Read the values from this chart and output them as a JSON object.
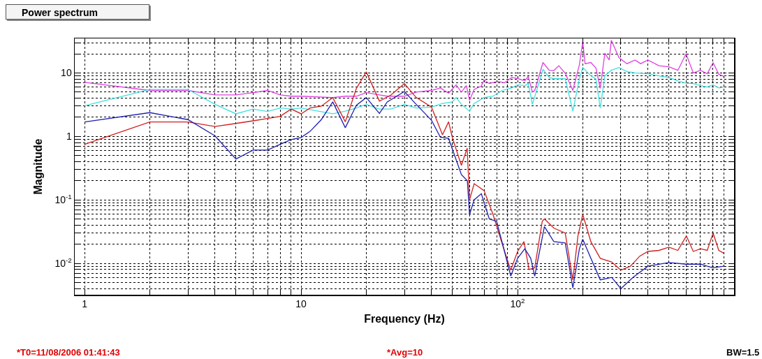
{
  "chart_data": {
    "type": "line",
    "title": "Power spectrum",
    "xlabel": "Frequency (Hz)",
    "ylabel": "Magnitude",
    "log": "xy",
    "grid": true,
    "marker": "none",
    "line_style": "solid",
    "xlim": [
      0.9,
      1000
    ],
    "ylim": [
      0.0032,
      35
    ],
    "xticks": [
      1,
      {
        "value": 2,
        "label": null
      },
      {
        "value": 3,
        "label": null
      },
      {
        "value": 4,
        "label": null
      },
      {
        "value": 5,
        "label": null
      },
      {
        "value": 6,
        "label": null
      },
      {
        "value": 7,
        "label": null
      },
      {
        "value": 8,
        "label": null
      },
      {
        "value": 9,
        "label": null
      },
      10,
      {
        "value": 20,
        "label": null
      },
      {
        "value": 30,
        "label": null
      },
      {
        "value": 40,
        "label": null
      },
      {
        "value": 50,
        "label": null
      },
      {
        "value": 60,
        "label": null
      },
      {
        "value": 70,
        "label": null
      },
      {
        "value": 80,
        "label": null
      },
      {
        "value": 90,
        "label": null
      },
      {
        "value": 100,
        "label": "10$^{2}$"
      },
      {
        "value": 200,
        "label": null
      },
      {
        "value": 300,
        "label": null
      },
      {
        "value": 400,
        "label": null
      },
      {
        "value": 500,
        "label": null
      },
      {
        "value": 600,
        "label": null
      },
      {
        "value": 700,
        "label": null
      },
      {
        "value": 800,
        "label": null
      },
      {
        "value": 900,
        "label": null
      }
    ],
    "yticks": [
      {
        "value": 0.004,
        "label": null
      },
      {
        "value": 0.005,
        "label": null
      },
      {
        "value": 0.006,
        "label": null
      },
      {
        "value": 0.007,
        "label": null
      },
      {
        "value": 0.008,
        "label": null
      },
      {
        "value": 0.009,
        "label": null
      },
      {
        "value": 0.01,
        "label": "10$^{-2}$"
      },
      {
        "value": 0.02,
        "label": null
      },
      {
        "value": 0.03,
        "label": null
      },
      {
        "value": 0.04,
        "label": null
      },
      {
        "value": 0.05,
        "label": null
      },
      {
        "value": 0.06,
        "label": null
      },
      {
        "value": 0.07,
        "label": null
      },
      {
        "value": 0.08,
        "label": null
      },
      {
        "value": 0.09,
        "label": null
      },
      {
        "value": 0.1,
        "label": "10$^{-1}$"
      },
      {
        "value": 0.2,
        "label": null
      },
      {
        "value": 0.3,
        "label": null
      },
      {
        "value": 0.4,
        "label": null
      },
      {
        "value": 0.5,
        "label": null
      },
      {
        "value": 0.6,
        "label": null
      },
      {
        "value": 0.7,
        "label": null
      },
      {
        "value": 0.8,
        "label": null
      },
      {
        "value": 0.9,
        "label": null
      },
      1,
      {
        "value": 2,
        "label": null
      },
      {
        "value": 3,
        "label": null
      },
      {
        "value": 4,
        "label": null
      },
      {
        "value": 5,
        "label": null
      },
      {
        "value": 6,
        "label": null
      },
      {
        "value": 7,
        "label": null
      },
      {
        "value": 8,
        "label": null
      },
      {
        "value": 9,
        "label": null
      },
      10,
      {
        "value": 20,
        "label": null
      },
      {
        "value": 30,
        "label": null
      }
    ],
    "series": [
      {
        "color": "#e040e0",
        "x": [
          1,
          2,
          3,
          4,
          5,
          6,
          7,
          8,
          9,
          10,
          14,
          16,
          18,
          20,
          23,
          25,
          30,
          34,
          40,
          44,
          48,
          52,
          55,
          58,
          60,
          63,
          68,
          70,
          74,
          81,
          87,
          94,
          100,
          108,
          112,
          117,
          120,
          131,
          140,
          147,
          155,
          166,
          180,
          193,
          200,
          205,
          218,
          230,
          241,
          253,
          265,
          271,
          294,
          320,
          349,
          370,
          400,
          450,
          500,
          550,
          600,
          648,
          700,
          752,
          800,
          850,
          895
        ],
        "values": [
          7.1,
          5.3,
          5.3,
          4.5,
          4.5,
          4.9,
          5.3,
          4.5,
          4.3,
          4.3,
          4.1,
          4.3,
          4.3,
          4.9,
          4.5,
          4.3,
          4.3,
          5.0,
          5.3,
          5.8,
          4.8,
          6.5,
          5.0,
          6.3,
          3.7,
          5.5,
          6.2,
          7.8,
          6.8,
          7.4,
          7.0,
          8.5,
          8.2,
          7.5,
          8.8,
          5.0,
          5.3,
          14.6,
          11,
          10.9,
          13,
          9.9,
          5.3,
          13.5,
          31,
          14,
          14.6,
          12,
          5.7,
          20.5,
          16,
          32.7,
          17.4,
          14,
          16,
          14,
          16,
          13,
          12.5,
          11,
          20,
          10,
          11,
          9.7,
          14.6,
          9.5,
          8.9
        ]
      },
      {
        "color": "#40e0e0",
        "x": [
          1,
          2,
          3,
          4,
          5,
          6,
          7,
          8,
          9,
          10,
          14,
          16,
          18,
          20,
          23,
          26,
          30,
          34,
          40,
          45,
          50,
          52,
          55,
          60,
          63,
          70,
          77,
          85,
          94,
          100,
          108,
          112,
          117,
          120,
          131,
          140,
          147,
          166,
          180,
          193,
          200,
          218,
          230,
          241,
          253,
          271,
          294,
          320,
          349,
          400,
          450,
          500,
          550,
          600,
          648,
          700,
          752,
          800,
          850,
          895
        ],
        "values": [
          3.05,
          5.5,
          5.5,
          3.2,
          2.27,
          2.7,
          2.47,
          2.8,
          2.7,
          2.8,
          2.27,
          2.5,
          2.8,
          3.2,
          2.7,
          2.7,
          3.2,
          2.8,
          2.9,
          3.3,
          3.5,
          4.1,
          3.2,
          2.5,
          3.3,
          4.1,
          4.3,
          5.3,
          5.8,
          6.5,
          6.3,
          6.8,
          3.2,
          4.2,
          11.4,
          8.5,
          8.1,
          8.1,
          2.5,
          8.1,
          12.2,
          9,
          8,
          2.8,
          9,
          11,
          12.2,
          10.5,
          10,
          9.7,
          9,
          8.5,
          7.5,
          6.9,
          6.8,
          6.3,
          6.0,
          6.5,
          5.8,
          6.0
        ]
      },
      {
        "color": "#d02020",
        "x": [
          1,
          2,
          3,
          4,
          5,
          6,
          7,
          8,
          9,
          10,
          11,
          12.4,
          14,
          16,
          18,
          20,
          23,
          26,
          30,
          34,
          40,
          45,
          48,
          50,
          55,
          58.5,
          60,
          63,
          70,
          77,
          85,
          93,
          100,
          107,
          113,
          120,
          130,
          133,
          147,
          166,
          180,
          190,
          200,
          218,
          241,
          272,
          300,
          332,
          367,
          400,
          450,
          500,
          550,
          602,
          648,
          700,
          752,
          800,
          850,
          895
        ],
        "values": [
          0.75,
          1.69,
          1.69,
          1.43,
          1.6,
          1.76,
          1.92,
          2.07,
          2.7,
          2.27,
          2.8,
          3.0,
          4.1,
          1.7,
          5.7,
          10.4,
          3.6,
          4.5,
          6.8,
          4.1,
          2.9,
          1.06,
          1.7,
          0.95,
          0.35,
          0.65,
          0.1,
          0.18,
          0.14,
          0.059,
          0.02,
          0.0078,
          0.0154,
          0.022,
          0.008,
          0.0085,
          0.046,
          0.05,
          0.036,
          0.03,
          0.0055,
          0.027,
          0.059,
          0.022,
          0.012,
          0.0105,
          0.0078,
          0.009,
          0.013,
          0.0154,
          0.016,
          0.018,
          0.016,
          0.027,
          0.0154,
          0.017,
          0.016,
          0.03,
          0.016,
          0.0145
        ]
      },
      {
        "color": "#2020b0",
        "x": [
          1,
          2,
          3,
          4,
          5,
          6,
          7,
          8,
          9,
          10,
          11,
          12.4,
          14,
          16,
          18,
          20,
          23,
          25,
          30,
          34,
          40,
          44,
          48,
          55,
          58.6,
          60,
          63,
          68,
          74,
          80,
          87,
          93,
          100,
          108,
          115,
          120,
          133,
          147,
          166,
          180,
          193,
          200,
          218,
          241,
          272,
          300,
          341,
          400,
          500,
          600,
          700,
          752,
          800,
          895
        ],
        "values": [
          1.69,
          2.37,
          1.84,
          1.02,
          0.44,
          0.61,
          0.61,
          0.75,
          0.89,
          0.96,
          1.2,
          1.84,
          3.5,
          1.37,
          3.1,
          4.1,
          2.3,
          3.5,
          5.1,
          3.2,
          1.8,
          0.97,
          0.93,
          0.25,
          0.2,
          0.059,
          0.1,
          0.125,
          0.05,
          0.046,
          0.0154,
          0.0063,
          0.012,
          0.017,
          0.012,
          0.0063,
          0.038,
          0.022,
          0.021,
          0.0041,
          0.017,
          0.024,
          0.012,
          0.0055,
          0.006,
          0.004,
          0.006,
          0.009,
          0.0103,
          0.0097,
          0.0097,
          0.009,
          0.0085,
          0.009
        ]
      }
    ],
    "annotations": [
      "*T0=11/08/2006 01:41:43",
      "*Avg=10",
      "BW=1.5"
    ]
  }
}
